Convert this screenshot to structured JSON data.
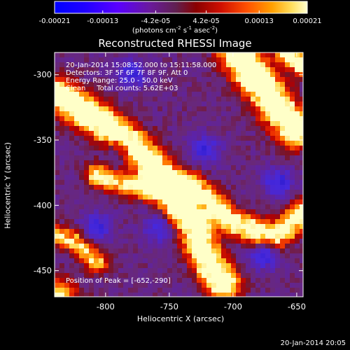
{
  "title": "Reconstructed RHESSI Image",
  "colorbar": {
    "tick_labels": [
      "-0.00021",
      "-0.00013",
      "-4.2e-05",
      "4.2e-05",
      "0.00013",
      "0.00021"
    ],
    "tick_values": [
      -0.00021,
      -0.00013,
      -4.2e-05,
      4.2e-05,
      0.00013,
      0.00021
    ],
    "range": [
      -0.00021,
      0.00021
    ],
    "units_prefix": "(photons cm",
    "units_exp1": "-2",
    "units_mid": " s",
    "units_exp2": "-1",
    "units_mid2": " asec",
    "units_exp3": "-2",
    "units_suffix": ")"
  },
  "info": {
    "time": "20-Jan-2014 15:08:52.000 to 15:11:58.000",
    "detectors": "Detectors: 3F 5F 6F 7F 8F 9F, Att 0",
    "energy": "Energy Range: 25.0 - 50.0 keV",
    "clean": "Clean     Total counts: 5.62E+03"
  },
  "peak_text": "Position of Peak = [-652,-290]",
  "footer_date": "20-Jan-2014 20:05",
  "chart_data": {
    "type": "heatmap",
    "title": "Reconstructed RHESSI Image",
    "xlabel": "Heliocentric X (arcsec)",
    "ylabel": "Heliocentric Y (arcsec)",
    "xlim": [
      -840,
      -645
    ],
    "ylim": [
      -470,
      -283
    ],
    "x_ticks": [
      -800,
      -750,
      -700,
      -650
    ],
    "y_ticks": [
      -300,
      -350,
      -400,
      -450
    ],
    "x_tick_labels": [
      "-800",
      "-750",
      "-700",
      "-650"
    ],
    "y_tick_labels": [
      "-300",
      "-350",
      "-400",
      "-450"
    ],
    "value_range": [
      -0.00021,
      0.00021
    ],
    "peak_position": [
      -652,
      -290
    ],
    "colormap": [
      "#0000ff",
      "#3a00ff",
      "#6a00a8",
      "#7a1f5a",
      "#b00000",
      "#ff3000",
      "#ff8000",
      "#ffc000",
      "#ffffc0"
    ],
    "grid": false
  },
  "colors": {
    "background": "#000000",
    "text": "#ffffff"
  }
}
